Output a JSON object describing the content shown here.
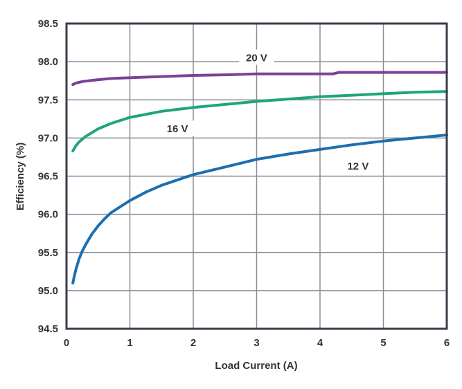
{
  "chart_data": {
    "type": "line",
    "title": "",
    "xlabel": "Load Current (A)",
    "ylabel": "Efficiency (%)",
    "xlim": [
      0,
      6
    ],
    "ylim": [
      94.5,
      98.5
    ],
    "xticks": [
      "0",
      "1",
      "2",
      "3",
      "4",
      "5",
      "6"
    ],
    "yticks": [
      "94.5",
      "95.0",
      "95.5",
      "96.0",
      "96.5",
      "97.0",
      "97.5",
      "98.0",
      "98.5"
    ],
    "grid": true,
    "series": [
      {
        "name": "20 V",
        "color": "#7d4199",
        "label_pos": [
          3.0,
          98.05
        ],
        "x": [
          0.1,
          0.15,
          0.25,
          0.45,
          0.7,
          1.3,
          2.0,
          2.6,
          3.0,
          4.2,
          4.3,
          5.0,
          6.0
        ],
        "y": [
          97.7,
          97.72,
          97.74,
          97.76,
          97.78,
          97.8,
          97.82,
          97.83,
          97.84,
          97.84,
          97.86,
          97.86,
          97.86
        ]
      },
      {
        "name": "16 V",
        "color": "#1ea57c",
        "label_pos": [
          1.75,
          97.12
        ],
        "x": [
          0.1,
          0.15,
          0.2,
          0.3,
          0.5,
          0.7,
          1.0,
          1.5,
          2.0,
          2.5,
          3.0,
          3.5,
          4.0,
          4.5,
          5.0,
          5.5,
          6.0
        ],
        "y": [
          96.83,
          96.9,
          96.95,
          97.02,
          97.12,
          97.19,
          97.27,
          97.35,
          97.4,
          97.44,
          97.48,
          97.51,
          97.54,
          97.56,
          97.58,
          97.6,
          97.61
        ]
      },
      {
        "name": "12 V",
        "color": "#1c6fae",
        "label_pos": [
          4.6,
          96.63
        ],
        "x": [
          0.1,
          0.12,
          0.15,
          0.2,
          0.25,
          0.3,
          0.4,
          0.5,
          0.6,
          0.7,
          0.85,
          1.0,
          1.25,
          1.5,
          1.75,
          2.0,
          2.5,
          3.0,
          3.5,
          4.0,
          4.5,
          5.0,
          5.5,
          6.0
        ],
        "y": [
          95.1,
          95.18,
          95.28,
          95.42,
          95.52,
          95.6,
          95.74,
          95.85,
          95.94,
          96.02,
          96.1,
          96.18,
          96.29,
          96.38,
          96.45,
          96.52,
          96.62,
          96.72,
          96.79,
          96.85,
          96.91,
          96.96,
          97.0,
          97.04
        ]
      }
    ]
  }
}
